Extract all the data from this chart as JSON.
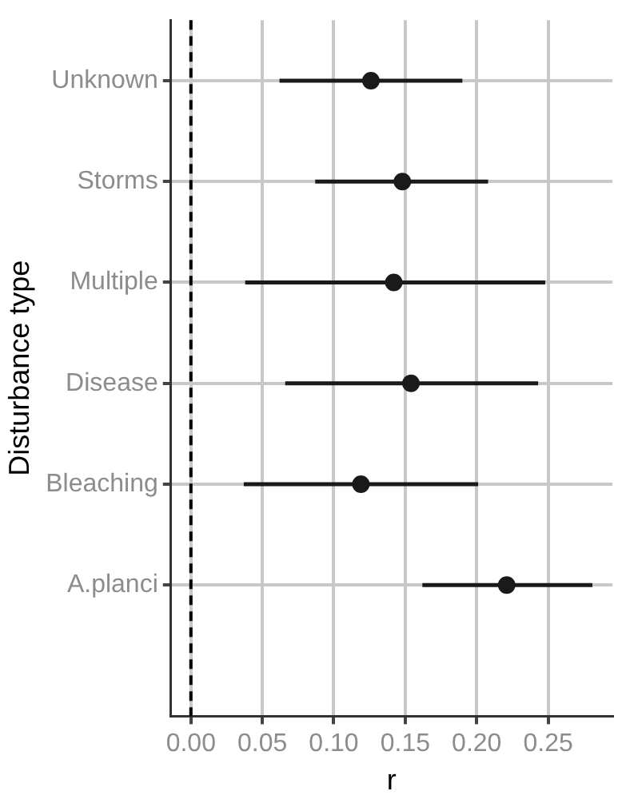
{
  "chart_data": {
    "type": "scatter",
    "orientation": "horizontal",
    "xlabel": "r",
    "ylabel": "Disturbance type",
    "categories": [
      "Unknown",
      "Storms",
      "Multiple",
      "Disease",
      "Bleaching",
      "A.planci"
    ],
    "values": [
      0.126,
      0.148,
      0.142,
      0.154,
      0.119,
      0.221
    ],
    "errors": [
      [
        0.062,
        0.19
      ],
      [
        0.087,
        0.208
      ],
      [
        0.038,
        0.248
      ],
      [
        0.066,
        0.243
      ],
      [
        0.037,
        0.201
      ],
      [
        0.162,
        0.281
      ]
    ],
    "color": "#1a1a1a",
    "marker": "circle",
    "xlim": [
      -0.014,
      0.295
    ],
    "xticks": [
      {
        "value": 0,
        "label": "0.00"
      },
      {
        "value": 0.05,
        "label": "0.05"
      },
      {
        "value": 0.1,
        "label": "0.10"
      },
      {
        "value": 0.15,
        "label": "0.15"
      },
      {
        "value": 0.2,
        "label": "0.20"
      },
      {
        "value": 0.25,
        "label": "0.25"
      }
    ],
    "ref_lines": [
      {
        "axis": "x",
        "value": 0,
        "line_style": "dashed",
        "color": "#000000"
      }
    ],
    "grid": true,
    "legend": false
  }
}
